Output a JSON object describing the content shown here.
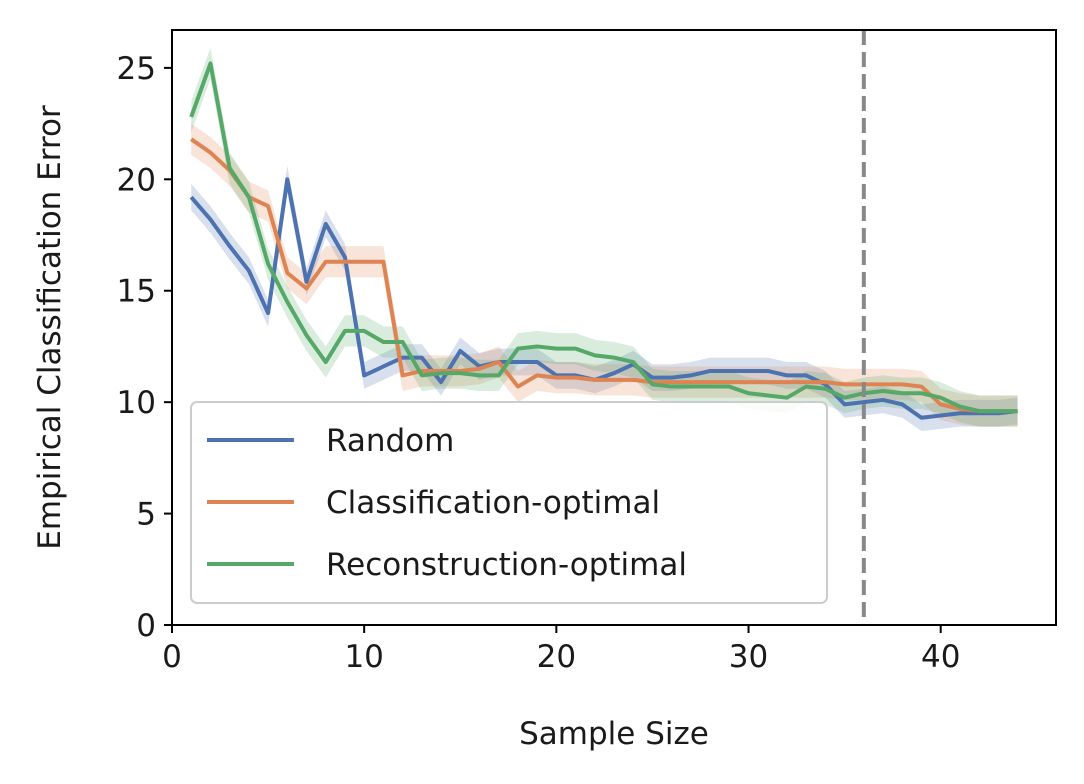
{
  "chart_data": {
    "type": "line",
    "xlabel": "Sample Size",
    "ylabel": "Empirical Classification Error",
    "xlim": [
      0,
      46
    ],
    "ylim": [
      0,
      26.7
    ],
    "xticks": [
      0,
      10,
      20,
      30,
      40
    ],
    "yticks": [
      0,
      5,
      10,
      15,
      20,
      25
    ],
    "grid": false,
    "legend_position": "lower-left",
    "vline": {
      "x": 36,
      "style": "dashed",
      "color": "#888888"
    },
    "x": [
      1,
      2,
      3,
      4,
      5,
      6,
      7,
      8,
      9,
      10,
      11,
      12,
      13,
      14,
      15,
      16,
      17,
      18,
      19,
      20,
      21,
      22,
      23,
      24,
      25,
      26,
      27,
      28,
      29,
      30,
      31,
      32,
      33,
      34,
      35,
      36,
      37,
      38,
      39,
      40,
      41,
      42,
      43,
      44
    ],
    "series": [
      {
        "name": "Random",
        "color": "#4c72b0",
        "band": 0.6,
        "values": [
          19.2,
          18.2,
          17.0,
          15.9,
          14.0,
          20.0,
          15.4,
          18.0,
          16.5,
          11.2,
          11.6,
          12.0,
          12.0,
          10.9,
          12.3,
          11.6,
          11.8,
          11.8,
          11.8,
          11.2,
          11.2,
          11.0,
          11.3,
          11.7,
          11.1,
          11.1,
          11.2,
          11.4,
          11.4,
          11.4,
          11.4,
          11.2,
          11.2,
          10.8,
          9.9,
          10.0,
          10.1,
          9.9,
          9.3,
          9.4,
          9.5,
          9.5,
          9.5,
          9.6
        ]
      },
      {
        "name": "Classification-optimal",
        "color": "#dd8452",
        "band": 0.7,
        "values": [
          21.8,
          21.2,
          20.4,
          19.2,
          18.8,
          15.8,
          15.1,
          16.3,
          16.3,
          16.3,
          16.3,
          11.2,
          11.4,
          11.4,
          11.4,
          11.5,
          11.8,
          10.7,
          11.2,
          11.1,
          11.1,
          11.0,
          11.0,
          11.0,
          10.9,
          10.9,
          10.9,
          10.9,
          10.9,
          10.9,
          10.9,
          10.9,
          10.9,
          10.9,
          10.8,
          10.8,
          10.8,
          10.8,
          10.7,
          9.9,
          9.7,
          9.6,
          9.6,
          9.6
        ]
      },
      {
        "name": "Reconstruction-optimal",
        "color": "#55a868",
        "band": 0.7,
        "values": [
          22.8,
          25.2,
          20.5,
          19.2,
          16.2,
          14.5,
          13.0,
          11.8,
          13.2,
          13.2,
          12.7,
          12.7,
          11.2,
          11.3,
          11.3,
          11.2,
          11.2,
          12.4,
          12.5,
          12.4,
          12.4,
          12.1,
          12.0,
          11.8,
          10.8,
          10.7,
          10.7,
          10.7,
          10.7,
          10.4,
          10.3,
          10.2,
          10.7,
          10.6,
          10.2,
          10.4,
          10.5,
          10.4,
          10.4,
          10.2,
          9.8,
          9.6,
          9.6,
          9.6
        ]
      }
    ]
  }
}
